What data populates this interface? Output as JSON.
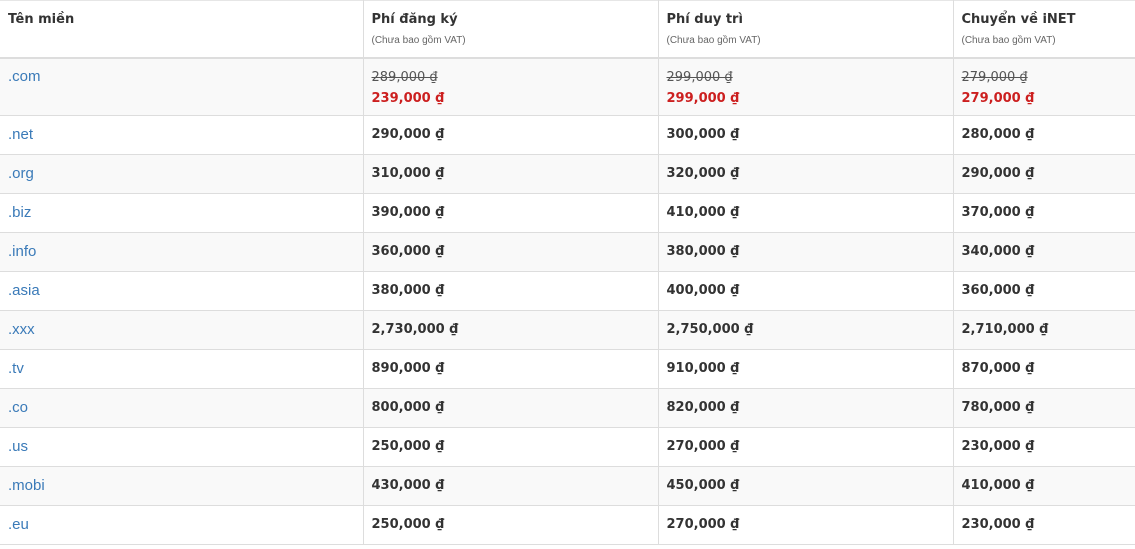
{
  "header": {
    "domain": "Tên miền",
    "register": "Phí đăng ký",
    "renew": "Phí duy trì",
    "transfer": "Chuyển về iNET",
    "vat_note": "(Chưa bao gồm VAT)"
  },
  "rows": [
    {
      "domain": ".com",
      "register_old": "289,000 ₫",
      "register": "239,000 ₫",
      "renew_old": "299,000 ₫",
      "renew": "299,000 ₫",
      "transfer_old": "279,000 ₫",
      "transfer": "279,000 ₫"
    },
    {
      "domain": ".net",
      "register": "290,000 ₫",
      "renew": "300,000 ₫",
      "transfer": "280,000 ₫"
    },
    {
      "domain": ".org",
      "register": "310,000 ₫",
      "renew": "320,000 ₫",
      "transfer": "290,000 ₫"
    },
    {
      "domain": ".biz",
      "register": "390,000 ₫",
      "renew": "410,000 ₫",
      "transfer": "370,000 ₫"
    },
    {
      "domain": ".info",
      "register": "360,000 ₫",
      "renew": "380,000 ₫",
      "transfer": "340,000 ₫"
    },
    {
      "domain": ".asia",
      "register": "380,000 ₫",
      "renew": "400,000 ₫",
      "transfer": "360,000 ₫"
    },
    {
      "domain": ".xxx",
      "register": "2,730,000 ₫",
      "renew": "2,750,000 ₫",
      "transfer": "2,710,000 ₫"
    },
    {
      "domain": ".tv",
      "register": "890,000 ₫",
      "renew": "910,000 ₫",
      "transfer": "870,000 ₫"
    },
    {
      "domain": ".co",
      "register": "800,000 ₫",
      "renew": "820,000 ₫",
      "transfer": "780,000 ₫"
    },
    {
      "domain": ".us",
      "register": "250,000 ₫",
      "renew": "270,000 ₫",
      "transfer": "230,000 ₫"
    },
    {
      "domain": ".mobi",
      "register": "430,000 ₫",
      "renew": "450,000 ₫",
      "transfer": "410,000 ₫"
    },
    {
      "domain": ".eu",
      "register": "250,000 ₫",
      "renew": "270,000 ₫",
      "transfer": "230,000 ₫"
    }
  ],
  "colors": {
    "link": "#3a7ab8",
    "sale": "#cc1f1f",
    "stripe": "#f9f9f9",
    "border": "#dddddd"
  }
}
